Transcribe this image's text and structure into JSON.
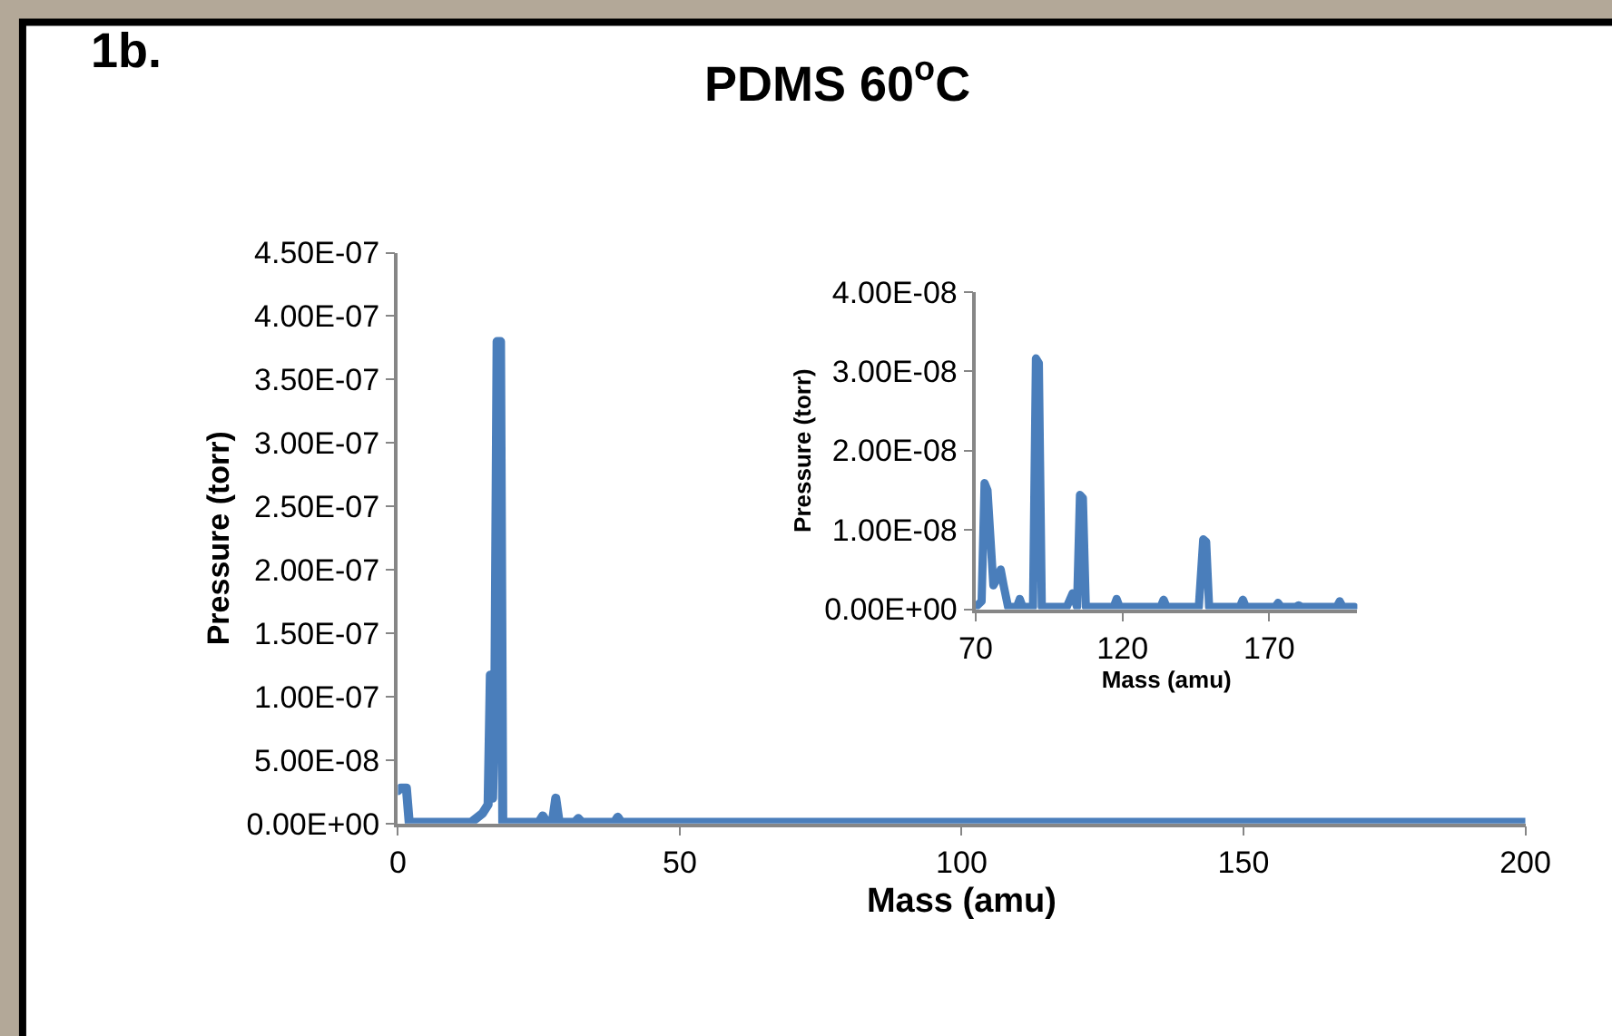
{
  "chart_data": [
    {
      "type": "line",
      "title": "PDMS 60$^{o}$C",
      "xlabel": "Mass (amu)",
      "ylabel": "Pressure (torr)",
      "annotations": [
        "1b."
      ],
      "x": [
        0,
        0.5,
        1.5,
        2,
        13,
        15,
        16,
        16.4,
        16.8,
        17.2,
        17.6,
        18.2,
        18.6,
        25,
        25.7,
        26.4,
        27.4,
        28,
        28.6,
        31.4,
        32,
        32.6,
        38.4,
        39,
        39.6,
        200
      ],
      "series": [
        {
          "color": "#4a7ebb",
          "values": [
            2.6e-08,
            2.8e-08,
            2.8e-08,
            1e-09,
            1e-09,
            8e-09,
            1.5e-08,
            1.17e-07,
            2e-08,
            1e-07,
            3.8e-07,
            3.8e-07,
            1e-09,
            1e-09,
            6e-09,
            1e-09,
            1e-09,
            2e-08,
            1e-09,
            1e-09,
            4e-09,
            1e-09,
            1e-09,
            5e-09,
            1e-09,
            1e-09
          ]
        }
      ],
      "xlim": [
        0,
        200
      ],
      "xticks": [
        0,
        50,
        100,
        150,
        200
      ],
      "ylim": [
        0,
        4.5e-07
      ],
      "yticks": [
        {
          "value": 0,
          "label": "0.00E+00"
        },
        {
          "value": 5e-08,
          "label": "5.00E-08"
        },
        {
          "value": 1e-07,
          "label": "1.00E-07"
        },
        {
          "value": 1.5e-07,
          "label": "1.50E-07"
        },
        {
          "value": 2e-07,
          "label": "2.00E-07"
        },
        {
          "value": 2.5e-07,
          "label": "2.50E-07"
        },
        {
          "value": 3e-07,
          "label": "3.00E-07"
        },
        {
          "value": 3.5e-07,
          "label": "3.50E-07"
        },
        {
          "value": 4e-07,
          "label": "4.00E-07"
        },
        {
          "value": 4.5e-07,
          "label": "4.50E-07"
        }
      ],
      "marker": "none",
      "line_style": "solid"
    },
    {
      "type": "line",
      "xlabel": "Mass (amu)",
      "ylabel": "Pressure (torr)",
      "x": [
        70,
        72,
        73,
        74,
        76,
        77.5,
        78.5,
        79.5,
        81,
        84,
        85,
        86,
        89.5,
        90.5,
        91.5,
        92.5,
        101,
        103,
        104.5,
        105.5,
        106.5,
        107.5,
        109,
        117,
        118,
        119,
        133,
        134,
        135,
        146,
        147.5,
        148.5,
        149.5,
        151,
        160,
        161,
        162,
        172,
        173,
        174,
        179,
        180,
        181,
        193,
        194,
        195,
        199
      ],
      "series": [
        {
          "color": "#4a7ebb",
          "values": [
            3e-10,
            1e-09,
            1.59e-08,
            1.5e-08,
            3e-09,
            4e-09,
            5e-09,
            3e-09,
            3e-10,
            3e-10,
            1.3e-09,
            3e-10,
            3e-10,
            3.16e-08,
            3.1e-08,
            3e-10,
            3e-10,
            2e-09,
            3e-10,
            1.44e-08,
            1.4e-08,
            3e-10,
            3e-10,
            3e-10,
            1.3e-09,
            3e-10,
            3e-10,
            1.2e-09,
            3e-10,
            3e-10,
            8.8e-09,
            8.5e-09,
            3e-10,
            3e-10,
            3e-10,
            1.2e-09,
            3e-10,
            3e-10,
            8e-10,
            3e-10,
            3e-10,
            5e-10,
            3e-10,
            3e-10,
            1e-09,
            3e-10,
            3e-10
          ]
        }
      ],
      "xlim": [
        70,
        200
      ],
      "xticks": [
        70,
        120,
        170
      ],
      "ylim": [
        0,
        4e-08
      ],
      "yticks": [
        {
          "value": 0,
          "label": "0.00E+00"
        },
        {
          "value": 1e-08,
          "label": "1.00E-08"
        },
        {
          "value": 2e-08,
          "label": "2.00E-08"
        },
        {
          "value": 3e-08,
          "label": "3.00E-08"
        },
        {
          "value": 4e-08,
          "label": "4.00E-08"
        }
      ],
      "marker": "none",
      "line_style": "solid"
    }
  ]
}
